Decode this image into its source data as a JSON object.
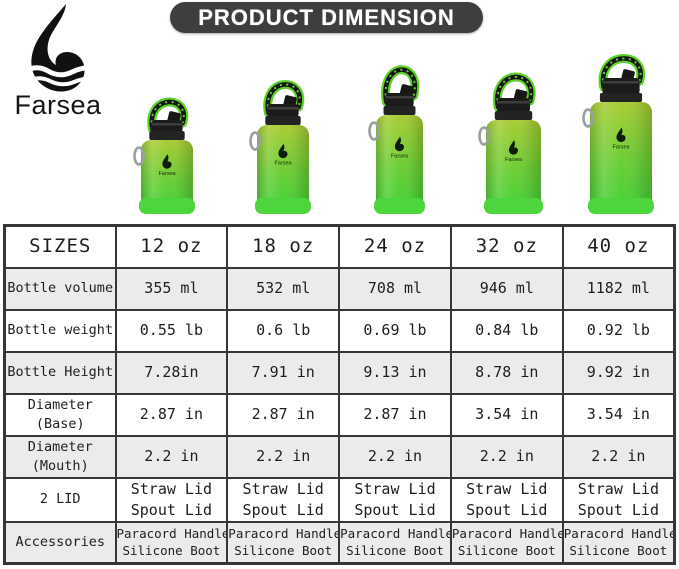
{
  "brand": {
    "name": "Farsea"
  },
  "header": {
    "title": "PRODUCT DIMENSION"
  },
  "colors": {
    "title_bg": "#3e3e3e",
    "title_text": "#ffffff",
    "table_border": "#363636",
    "row_alt_bg": "#ebebeb",
    "bottle_gradient_top": "#a9cc35",
    "bottle_gradient_mid": "#6fce36",
    "bottle_gradient_bottom": "#3ed239",
    "silicone_boot": "#4cd63c",
    "lid": "#1b1b1b",
    "handle_black": "#161616",
    "handle_green": "#5fd22c",
    "carabiner": "#9aa09e",
    "logo_black": "#111111"
  },
  "bottles": [
    {
      "size_label": "12 oz"
    },
    {
      "size_label": "18 oz"
    },
    {
      "size_label": "24 oz"
    },
    {
      "size_label": "32 oz"
    },
    {
      "size_label": "40 oz"
    }
  ],
  "table": {
    "rows": [
      {
        "label_lines": [
          "SIZES"
        ],
        "cells": [
          [
            "12 oz"
          ],
          [
            "18 oz"
          ],
          [
            "24 oz"
          ],
          [
            "32 oz"
          ],
          [
            "40 oz"
          ]
        ]
      },
      {
        "label_lines": [
          "Bottle volume"
        ],
        "cells": [
          [
            "355 ml"
          ],
          [
            "532 ml"
          ],
          [
            "708 ml"
          ],
          [
            "946 ml"
          ],
          [
            "1182 ml"
          ]
        ]
      },
      {
        "label_lines": [
          "Bottle weight"
        ],
        "cells": [
          [
            "0.55 lb"
          ],
          [
            "0.6 lb"
          ],
          [
            "0.69 lb"
          ],
          [
            "0.84 lb"
          ],
          [
            "0.92 lb"
          ]
        ]
      },
      {
        "label_lines": [
          "Bottle Height"
        ],
        "cells": [
          [
            "7.28in"
          ],
          [
            "7.91 in"
          ],
          [
            "9.13 in"
          ],
          [
            "8.78 in"
          ],
          [
            "9.92 in"
          ]
        ]
      },
      {
        "label_lines": [
          "Diameter",
          "(Base)"
        ],
        "cells": [
          [
            "2.87 in"
          ],
          [
            "2.87 in"
          ],
          [
            "2.87 in"
          ],
          [
            "3.54 in"
          ],
          [
            "3.54 in"
          ]
        ]
      },
      {
        "label_lines": [
          "Diameter",
          "(Mouth)"
        ],
        "cells": [
          [
            "2.2 in"
          ],
          [
            "2.2 in"
          ],
          [
            "2.2 in"
          ],
          [
            "2.2 in"
          ],
          [
            "2.2 in"
          ]
        ]
      },
      {
        "label_lines": [
          "2 LID"
        ],
        "cells": [
          [
            "Straw Lid",
            "Spout Lid"
          ],
          [
            "Straw Lid",
            "Spout Lid"
          ],
          [
            "Straw Lid",
            "Spout Lid"
          ],
          [
            "Straw Lid",
            "Spout Lid"
          ],
          [
            "Straw Lid",
            "Spout Lid"
          ]
        ]
      },
      {
        "label_lines": [
          "Accessories"
        ],
        "cells": [
          [
            "Paracord Handle",
            "Silicone Boot"
          ],
          [
            "Paracord Handle",
            "Silicone Boot"
          ],
          [
            "Paracord Handle",
            "Silicone Boot"
          ],
          [
            "Paracord Handle",
            "Silicone Boot"
          ],
          [
            "Paracord Handle",
            "Silicone Boot"
          ]
        ]
      }
    ]
  }
}
